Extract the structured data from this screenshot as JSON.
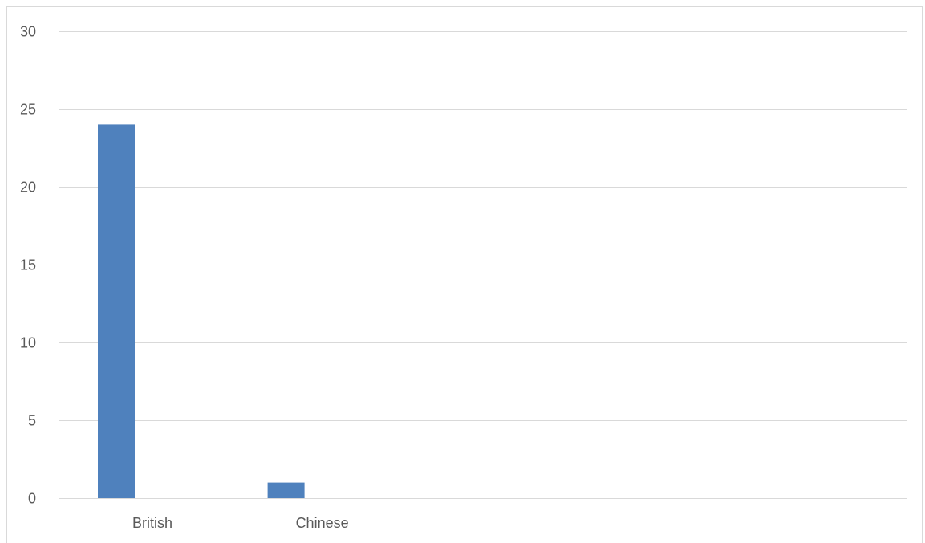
{
  "chart_data": {
    "type": "bar",
    "categories": [
      "British",
      "Chinese",
      "",
      "",
      ""
    ],
    "series": [
      {
        "values": [
          24,
          1,
          null,
          null,
          null
        ],
        "color": "#4f81bd"
      }
    ],
    "title": "",
    "xlabel": "",
    "ylabel": "",
    "ylim": [
      0,
      30
    ],
    "yticks": [
      "0",
      "5",
      "10",
      "15",
      "20",
      "25",
      "30"
    ],
    "grid": true,
    "legend": "none"
  },
  "colors": {
    "gridline": "#d9d9d9",
    "axis": "#d9d9d9",
    "text": "#595959"
  }
}
